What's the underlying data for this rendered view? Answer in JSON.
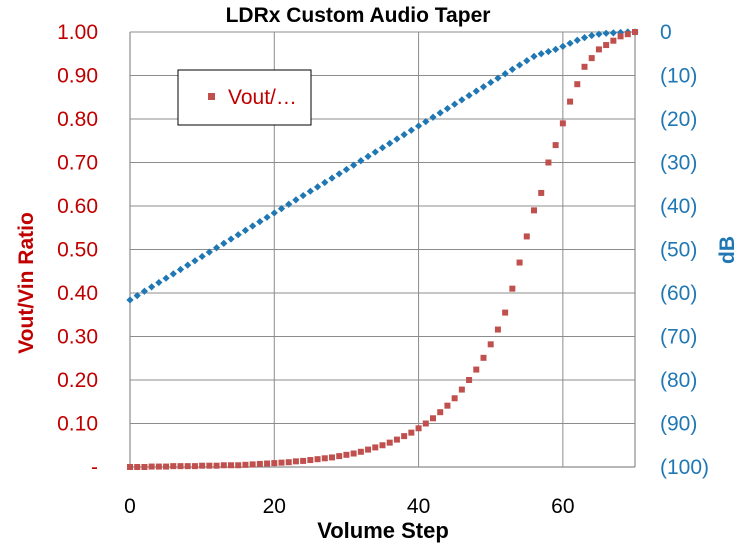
{
  "chart_data": {
    "type": "scatter",
    "title": "LDRx Custom Audio Taper",
    "xlabel": "Volume Step",
    "ylabel_left": "Vout/Vin Ratio",
    "ylabel_right": "dB",
    "xlim": [
      0,
      70
    ],
    "ylim_left": [
      0,
      1
    ],
    "ylim_right": [
      -100,
      0
    ],
    "grid": true,
    "x_ticks": [
      "0",
      "20",
      "40",
      "60"
    ],
    "y_left_ticks": [
      "-",
      "0.10",
      "0.20",
      "0.30",
      "0.40",
      "0.50",
      "0.60",
      "0.70",
      "0.80",
      "0.90",
      "1.00"
    ],
    "y_right_ticks": [
      "(100)",
      "(90)",
      "(80)",
      "(70)",
      "(60)",
      "(50)",
      "(40)",
      "(30)",
      "(20)",
      "(10)",
      "0"
    ],
    "legend": {
      "label": "Vout/…",
      "position": "top-left"
    },
    "colors": {
      "ratio": "#c0504d",
      "db": "#1f77b4",
      "left_axis": "#c00000"
    },
    "series": [
      {
        "name": "Vout/…",
        "axis": "left",
        "marker": "square",
        "x": [
          0,
          1,
          2,
          3,
          4,
          5,
          6,
          7,
          8,
          9,
          10,
          11,
          12,
          13,
          14,
          15,
          16,
          17,
          18,
          19,
          20,
          21,
          22,
          23,
          24,
          25,
          26,
          27,
          28,
          29,
          30,
          31,
          32,
          33,
          34,
          35,
          36,
          37,
          38,
          39,
          40,
          41,
          42,
          43,
          44,
          45,
          46,
          47,
          48,
          49,
          50,
          51,
          52,
          53,
          54,
          55,
          56,
          57,
          58,
          59,
          60,
          61,
          62,
          63,
          64,
          65,
          66,
          67,
          68,
          69,
          70
        ],
        "y": [
          0.0,
          0.0,
          0.0,
          0.001,
          0.001,
          0.001,
          0.002,
          0.002,
          0.002,
          0.002,
          0.003,
          0.003,
          0.003,
          0.004,
          0.004,
          0.004,
          0.005,
          0.006,
          0.007,
          0.008,
          0.009,
          0.01,
          0.011,
          0.013,
          0.014,
          0.016,
          0.018,
          0.02,
          0.022,
          0.025,
          0.028,
          0.031,
          0.035,
          0.04,
          0.045,
          0.05,
          0.056,
          0.063,
          0.071,
          0.079,
          0.089,
          0.1,
          0.112,
          0.126,
          0.141,
          0.158,
          0.178,
          0.2,
          0.224,
          0.251,
          0.282,
          0.316,
          0.355,
          0.41,
          0.47,
          0.53,
          0.59,
          0.63,
          0.7,
          0.74,
          0.79,
          0.84,
          0.88,
          0.92,
          0.94,
          0.96,
          0.97,
          0.98,
          0.99,
          0.995,
          1.0
        ]
      },
      {
        "name": "dB",
        "axis": "right",
        "marker": "diamond",
        "x": [
          0,
          1,
          2,
          3,
          4,
          5,
          6,
          7,
          8,
          9,
          10,
          11,
          12,
          13,
          14,
          15,
          16,
          17,
          18,
          19,
          20,
          21,
          22,
          23,
          24,
          25,
          26,
          27,
          28,
          29,
          30,
          31,
          32,
          33,
          34,
          35,
          36,
          37,
          38,
          39,
          40,
          41,
          42,
          43,
          44,
          45,
          46,
          47,
          48,
          49,
          50,
          51,
          52,
          53,
          54,
          55,
          56,
          57,
          58,
          59,
          60,
          61,
          62,
          63,
          64,
          65,
          66,
          67,
          68,
          69,
          70
        ],
        "y": [
          -61.6,
          -60.6,
          -59.6,
          -58.6,
          -57.6,
          -56.6,
          -55.6,
          -54.6,
          -53.6,
          -52.6,
          -51.6,
          -50.6,
          -49.6,
          -48.6,
          -47.6,
          -46.6,
          -45.6,
          -44.6,
          -43.6,
          -42.6,
          -41.6,
          -40.6,
          -39.6,
          -38.6,
          -37.6,
          -36.6,
          -35.6,
          -34.6,
          -33.6,
          -32.6,
          -31.6,
          -30.6,
          -29.6,
          -28.6,
          -27.6,
          -26.6,
          -25.6,
          -24.6,
          -23.6,
          -22.6,
          -21.6,
          -20.6,
          -19.6,
          -18.6,
          -17.6,
          -16.6,
          -15.6,
          -14.6,
          -13.6,
          -12.6,
          -11.6,
          -10.6,
          -9.6,
          -8.6,
          -7.6,
          -6.6,
          -5.6,
          -5.0,
          -4.5,
          -4.0,
          -3.3,
          -2.6,
          -1.9,
          -1.3,
          -0.8,
          -0.5,
          -0.3,
          -0.2,
          -0.1,
          0.0,
          0.0
        ]
      }
    ]
  }
}
